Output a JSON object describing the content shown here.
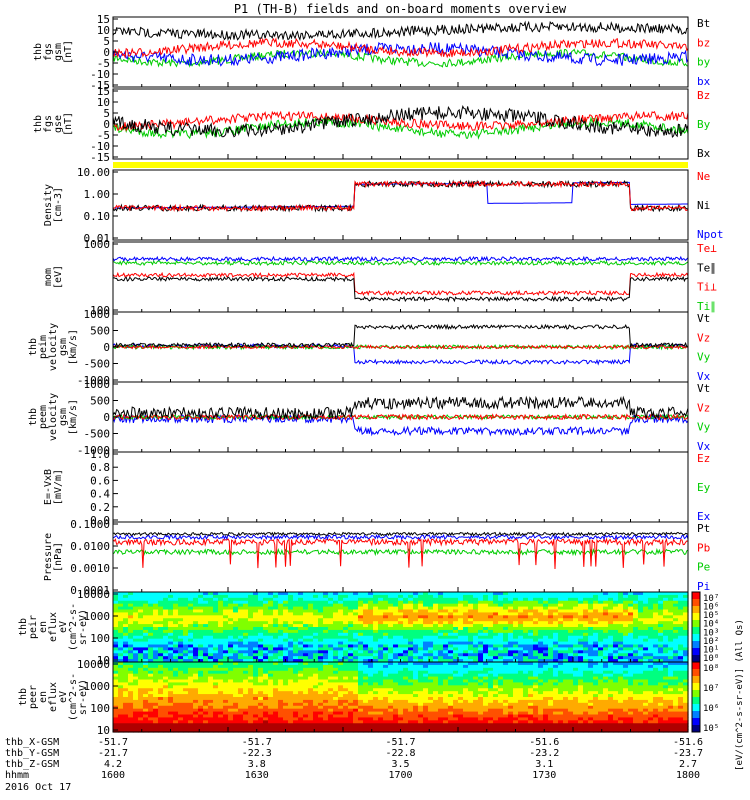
{
  "title": "P1 (TH-B) fields and on-board moments overview",
  "chart_data": {
    "type": "line",
    "x_ticks": [
      "1600",
      "1630",
      "1700",
      "1730",
      "1800"
    ],
    "ephemeris": [
      {
        "label": "thb_X-GSM",
        "values": [
          "-51.7",
          "-51.7",
          "-51.7",
          "-51.6",
          "-51.6"
        ]
      },
      {
        "label": "thb_Y-GSM",
        "values": [
          "-21.7",
          "-22.3",
          "-22.8",
          "-23.2",
          "-23.7"
        ]
      },
      {
        "label": "thb_Z-GSM",
        "values": [
          "4.2",
          "3.8",
          "3.5",
          "3.1",
          "2.7"
        ]
      },
      {
        "label": "hhmm",
        "values": [
          "1600",
          "1630",
          "1700",
          "1730",
          "1800"
        ]
      }
    ],
    "date_label": "2016 Oct 17",
    "colorbar_label": "[eV/(cm^2-s-sr-eV)] (All Qs)",
    "panels": [
      {
        "id": "fgs_gsm",
        "ylabel": [
          "thb",
          "fgs",
          "gsm",
          "[nT]"
        ],
        "ticks": [
          "15",
          "10",
          "5",
          "0",
          "-5",
          "-10",
          "-15"
        ],
        "legend": [
          {
            "text": "Bt",
            "color": "#000000"
          },
          {
            "text": "bz",
            "color": "#ff0000"
          },
          {
            "text": "by",
            "color": "#00cc00"
          },
          {
            "text": "bx",
            "color": "#0000ff"
          }
        ]
      },
      {
        "id": "fgs_gse",
        "ylabel": [
          "thb",
          "fgs",
          "gse",
          "[nT]"
        ],
        "ticks": [
          "15",
          "10",
          "5",
          "0",
          "-5",
          "-10",
          "-15"
        ],
        "legend": [
          {
            "text": "Bz",
            "color": "#ff0000"
          },
          {
            "text": "By",
            "color": "#00cc00"
          },
          {
            "text": "Bx",
            "color": "#000000"
          }
        ]
      },
      {
        "id": "density",
        "ylabel": [
          "Density",
          "[cm-3]"
        ],
        "ticks": [
          "10.00",
          "1.00",
          "0.10",
          "0.01"
        ],
        "legend": [
          {
            "text": "Ne",
            "color": "#ff0000"
          },
          {
            "text": "Ni",
            "color": "#000000"
          },
          {
            "text": "Npot",
            "color": "#0000ff"
          }
        ]
      },
      {
        "id": "temp",
        "ylabel": [
          "mom",
          "[eV]"
        ],
        "ticks": [
          "1000",
          "100"
        ],
        "legend": [
          {
            "text": "Te⊥",
            "color": "#ff0000"
          },
          {
            "text": "Te∥",
            "color": "#000000"
          },
          {
            "text": "Ti⊥",
            "color": "#ff0000"
          },
          {
            "text": "Ti∥",
            "color": "#00cc00"
          }
        ]
      },
      {
        "id": "peim_vel",
        "ylabel": [
          "thb",
          "peim",
          "velocity",
          "gsm",
          "[km/s]"
        ],
        "ticks": [
          "1000",
          "500",
          "0",
          "-500",
          "-1000"
        ],
        "legend": [
          {
            "text": "Vt",
            "color": "#000000"
          },
          {
            "text": "Vz",
            "color": "#ff0000"
          },
          {
            "text": "Vy",
            "color": "#00cc00"
          },
          {
            "text": "Vx",
            "color": "#0000ff"
          }
        ]
      },
      {
        "id": "peem_vel",
        "ylabel": [
          "thb",
          "peem",
          "velocity",
          "gsm",
          "[km/s]"
        ],
        "ticks": [
          "1000",
          "500",
          "0",
          "-500",
          "-1000"
        ],
        "legend": [
          {
            "text": "Vt",
            "color": "#000000"
          },
          {
            "text": "Vz",
            "color": "#ff0000"
          },
          {
            "text": "Vy",
            "color": "#00cc00"
          },
          {
            "text": "Vx",
            "color": "#0000ff"
          }
        ]
      },
      {
        "id": "efield",
        "ylabel": [
          "E=-VxB",
          "[mV/m]"
        ],
        "ticks": [
          "1.0",
          "0.8",
          "0.6",
          "0.4",
          "0.2",
          "0.0"
        ],
        "legend": [
          {
            "text": "Ez",
            "color": "#ff0000"
          },
          {
            "text": "Ey",
            "color": "#00cc00"
          },
          {
            "text": "Ex",
            "color": "#0000ff"
          }
        ]
      },
      {
        "id": "pressure",
        "ylabel": [
          "Pressure",
          "[nPa]"
        ],
        "ticks": [
          "0.1000",
          "0.0100",
          "0.0010",
          "0.0001"
        ],
        "legend": [
          {
            "text": "Pt",
            "color": "#000000"
          },
          {
            "text": "Pb",
            "color": "#ff0000"
          },
          {
            "text": "Pe",
            "color": "#00cc00"
          },
          {
            "text": "Pi",
            "color": "#0000ff"
          }
        ]
      },
      {
        "id": "peir_spec",
        "ylabel": [
          "thb",
          "peir",
          "en",
          "eflux",
          "eV",
          "(cm^2-s-",
          "sr-eV)"
        ],
        "ticks": [
          "10000",
          "1000",
          "100",
          "10"
        ],
        "cbar_ticks": [
          "10⁷",
          "10⁶",
          "10⁵",
          "10⁴",
          "10³",
          "10²",
          "10¹",
          "10⁰"
        ]
      },
      {
        "id": "peer_spec",
        "ylabel": [
          "thb",
          "peer",
          "en",
          "eflux",
          "eV",
          "(cm^2-s-",
          "sr-eV)"
        ],
        "ticks": [
          "10000",
          "1000",
          "100",
          "10"
        ],
        "cbar_ticks": [
          "10⁸",
          "10⁷",
          "10⁶",
          "10⁵"
        ]
      }
    ]
  }
}
